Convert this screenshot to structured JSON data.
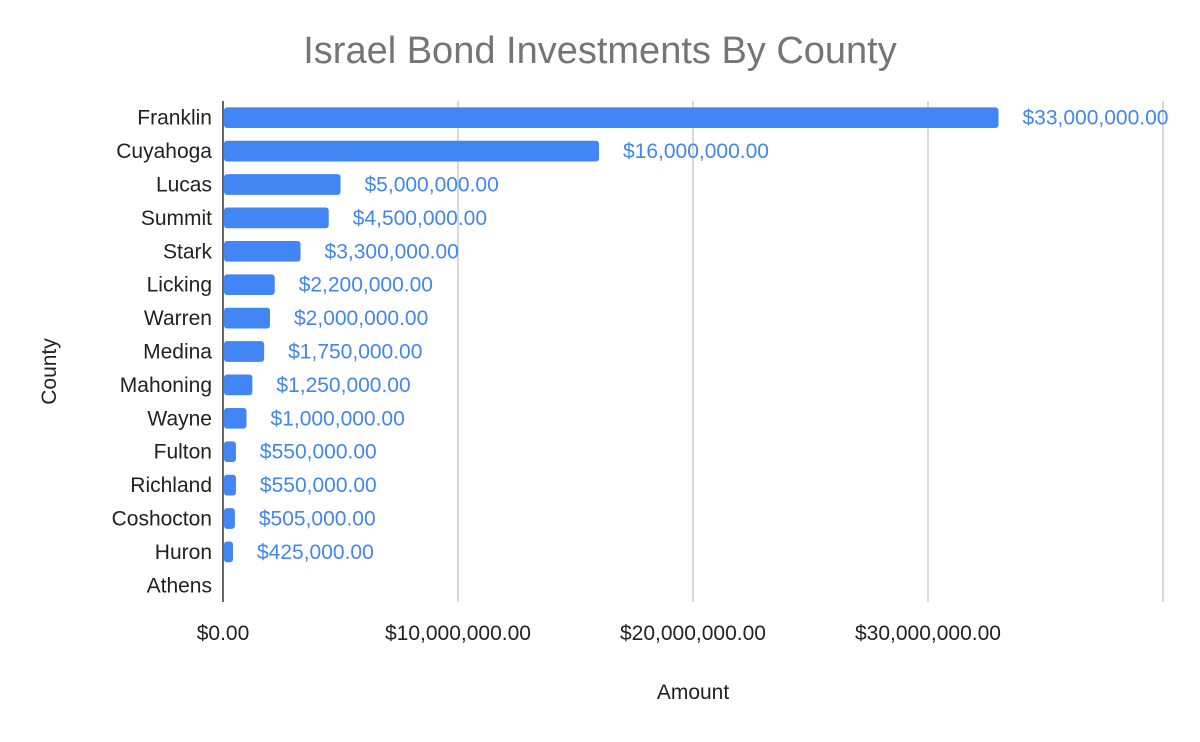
{
  "chart_data": {
    "type": "bar",
    "orientation": "horizontal",
    "title": "Israel Bond Investments By County",
    "xlabel": "Amount",
    "ylabel": "County",
    "categories": [
      "Franklin",
      "Cuyahoga",
      "Lucas",
      "Summit",
      "Stark",
      "Licking",
      "Warren",
      "Medina",
      "Mahoning",
      "Wayne",
      "Fulton",
      "Richland",
      "Coshocton",
      "Huron",
      "Athens"
    ],
    "values": [
      33000000,
      16000000,
      5000000,
      4500000,
      3300000,
      2200000,
      2000000,
      1750000,
      1250000,
      1000000,
      550000,
      550000,
      505000,
      425000,
      0
    ],
    "data_labels": [
      "$33,000,000.00",
      "$16,000,000.00",
      "$5,000,000.00",
      "$4,500,000.00",
      "$3,300,000.00",
      "$2,200,000.00",
      "$2,000,000.00",
      "$1,750,000.00",
      "$1,250,000.00",
      "$1,000,000.00",
      "$550,000.00",
      "$550,000.00",
      "$505,000.00",
      "$425,000.00",
      ""
    ],
    "x_ticks": [
      0,
      10000000,
      20000000,
      30000000,
      40000000
    ],
    "x_tick_labels": [
      "$0.00",
      "$10,000,000.00",
      "$20,000,000.00",
      "$30,000,000.00",
      ""
    ],
    "xlim": [
      0,
      40000000
    ],
    "grid": true,
    "legend": "none",
    "colors": {
      "bar": "#4285f4",
      "data_label": "#4285f4",
      "grid": "#cccccc",
      "axis": "#333333",
      "title": "#757575"
    }
  }
}
